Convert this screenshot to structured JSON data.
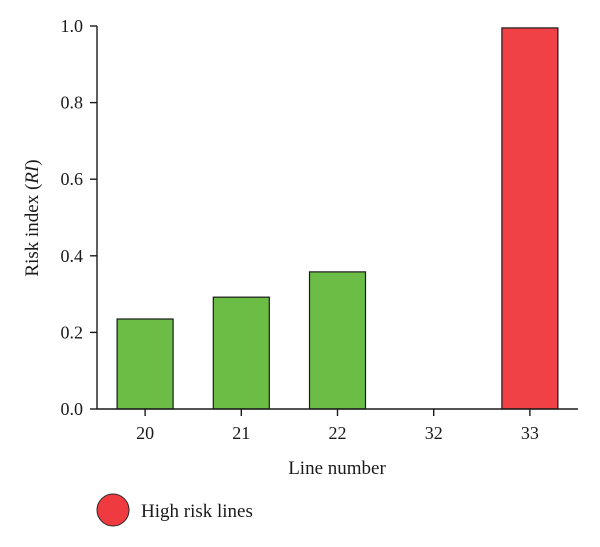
{
  "chart_data": {
    "type": "bar",
    "title": "",
    "categories": [
      "20",
      "21",
      "22",
      "32",
      "33"
    ],
    "values": [
      0.235,
      0.292,
      0.358,
      0,
      0.995
    ],
    "bar_colors": [
      "#6cbd45",
      "#6cbd45",
      "#6cbd45",
      "#6cbd45",
      "#ef4146"
    ],
    "xlabel": "Line number",
    "ylabel_main": "Risk index (",
    "ylabel_italic": "RI",
    "ylabel_close": ")",
    "ylim": [
      0,
      1.0
    ],
    "yticks": [
      "0.0",
      "0.2",
      "0.4",
      "0.6",
      "0.8",
      "1.0"
    ],
    "grid": false,
    "legend": [
      {
        "label": "High risk lines",
        "color": "#ef3a3f",
        "marker": "circle"
      }
    ],
    "legend_position": "bottom-left"
  }
}
